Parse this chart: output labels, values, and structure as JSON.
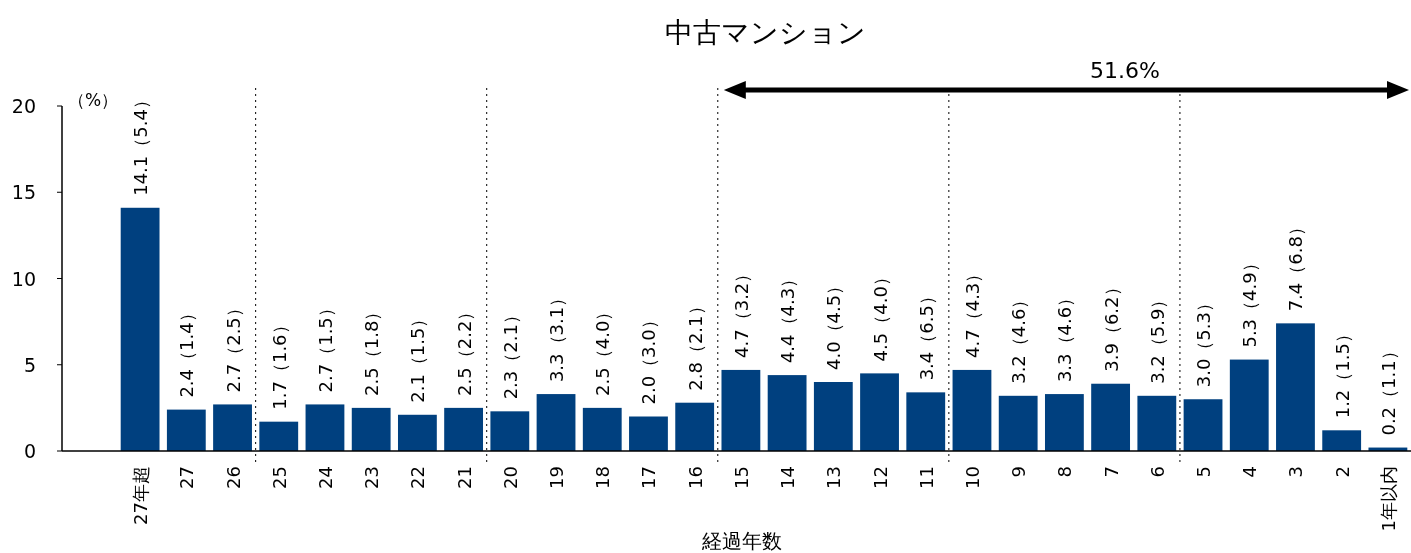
{
  "chart_data": {
    "type": "bar",
    "title": "中古マンション",
    "xlabel": "経過年数",
    "ylabel": "（%）",
    "categories": [
      "27年超",
      "27",
      "26",
      "25",
      "24",
      "23",
      "22",
      "21",
      "20",
      "19",
      "18",
      "17",
      "16",
      "15",
      "14",
      "13",
      "12",
      "11",
      "10",
      "9",
      "8",
      "7",
      "6",
      "5",
      "4",
      "3",
      "2",
      "1年以内"
    ],
    "values": [
      14.1,
      2.4,
      2.7,
      1.7,
      2.7,
      2.5,
      2.1,
      2.5,
      2.3,
      3.3,
      2.5,
      2.0,
      2.8,
      4.7,
      4.4,
      4.0,
      4.5,
      3.4,
      4.7,
      3.2,
      3.3,
      3.9,
      3.2,
      3.0,
      5.3,
      7.4,
      1.2,
      0.2
    ],
    "value_labels": [
      "14.1（5.4）",
      "2.4（1.4）",
      "2.7（2.5）",
      "1.7（1.6）",
      "2.7（1.5）",
      "2.5（1.8）",
      "2.1（1.5）",
      "2.5（2.2）",
      "2.3（2.1）",
      "3.3（3.1）",
      "2.5（4.0）",
      "2.0（3.0）",
      "2.8（2.1）",
      "4.7（3.2）",
      "4.4（4.3）",
      "4.0（4.5）",
      "4.5（4.0）",
      "3.4（6.5）",
      "4.7（4.3）",
      "3.2（4.6）",
      "3.3（4.6）",
      "3.9（6.2）",
      "3.2（5.9）",
      "3.0（5.3）",
      "5.3（4.9）",
      "7.4（6.8）",
      "1.2（1.5）",
      "0.2（1.1）"
    ],
    "color": "#00407f",
    "ylim": [
      0,
      20
    ],
    "yticks": [
      0,
      5,
      10,
      15,
      20
    ],
    "annotations": [
      "51.6%"
    ]
  }
}
